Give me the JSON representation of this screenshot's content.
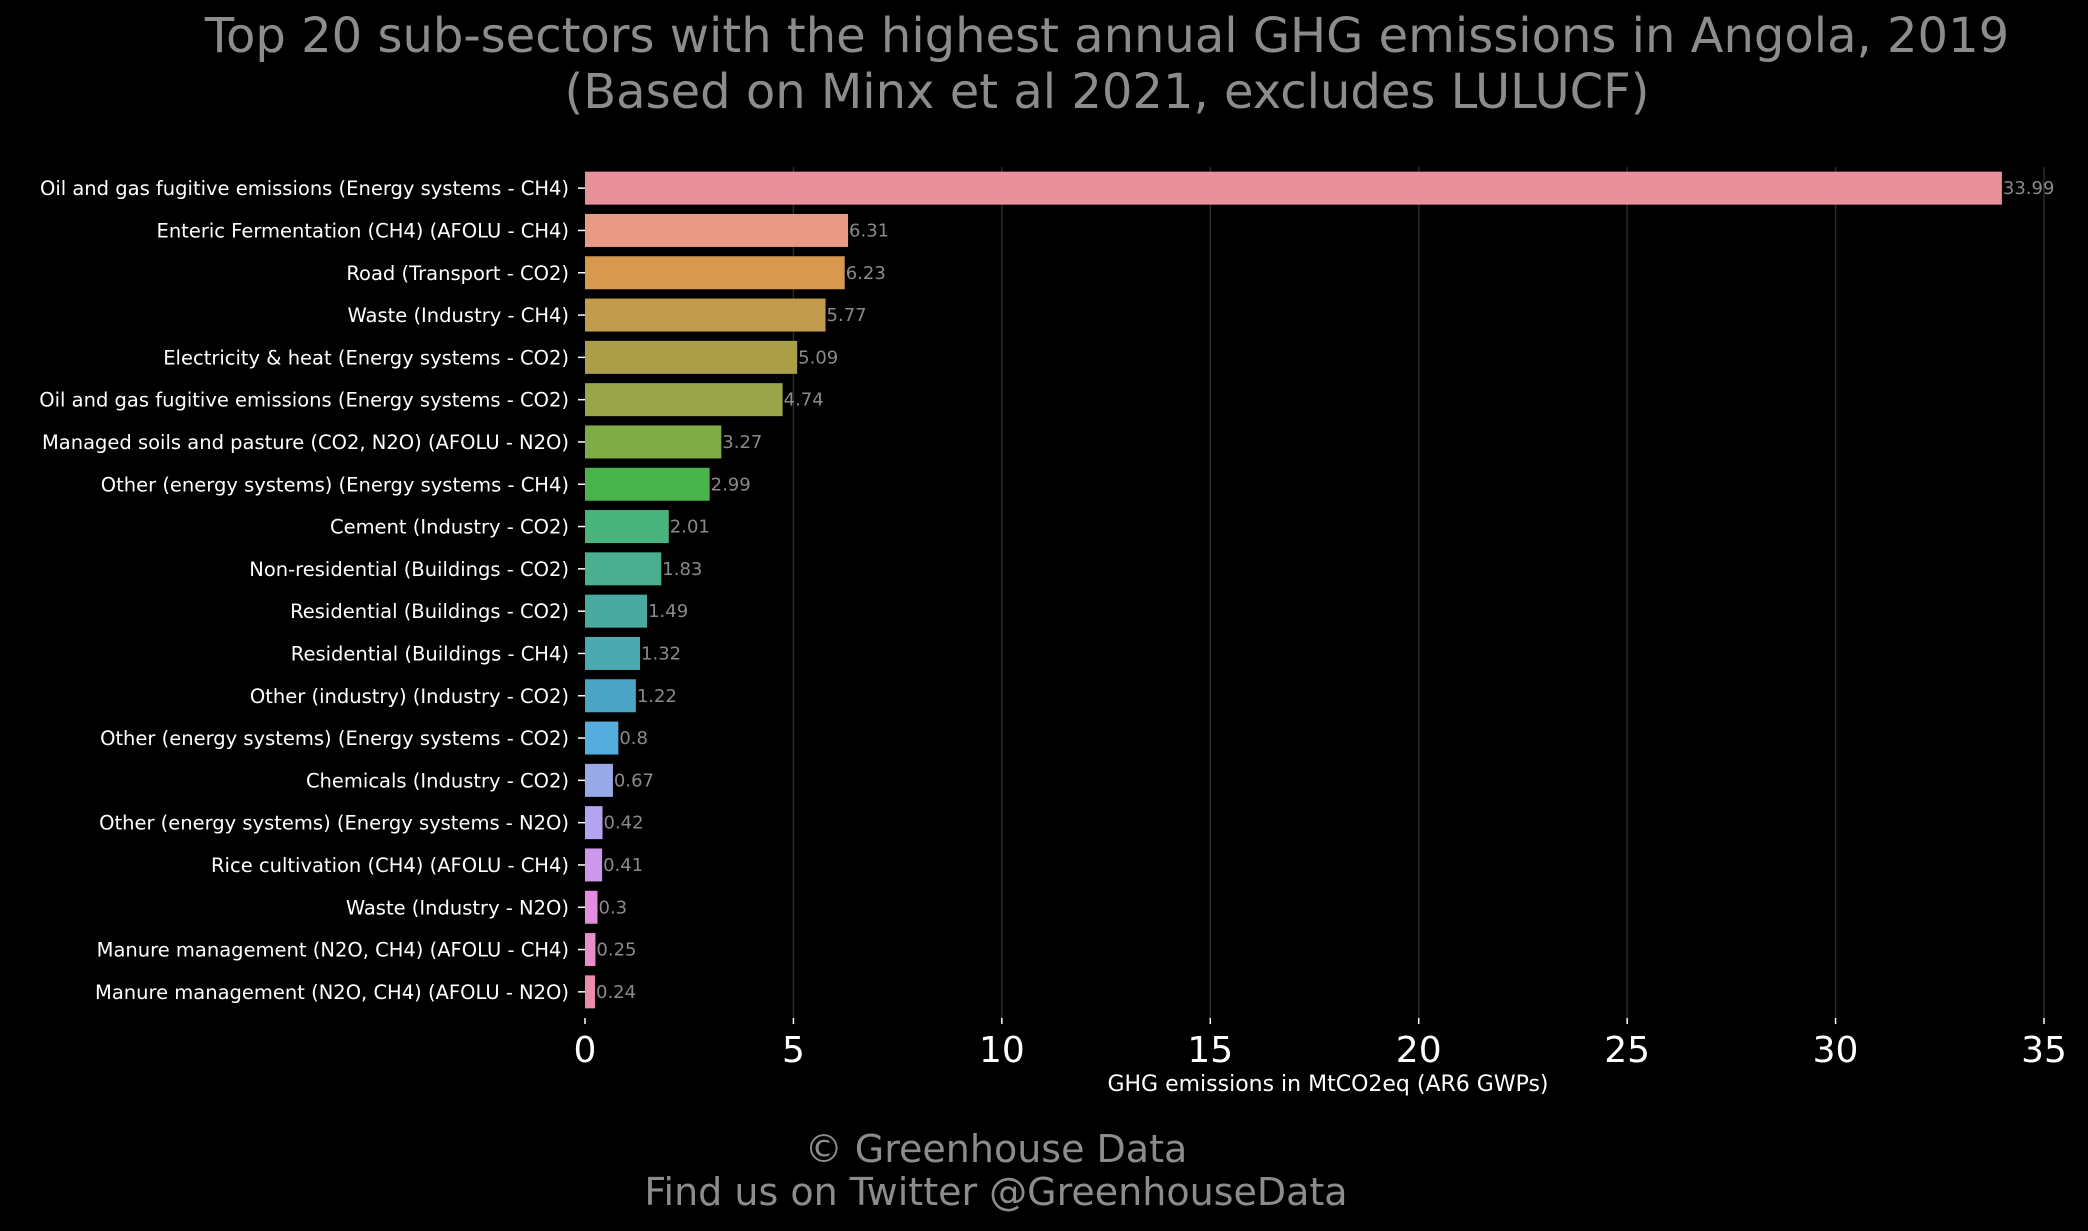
{
  "chart_data": {
    "type": "bar",
    "orientation": "horizontal",
    "title": "Top 20 sub-sectors with the highest annual GHG emissions in Angola, 2019",
    "subtitle": "(Based on Minx et al 2021, excludes LULUCF)",
    "xlabel": "GHG emissions in MtCO2eq (AR6 GWPs)",
    "ylabel": "",
    "xlim": [
      0,
      35
    ],
    "xticks": [
      0,
      5,
      10,
      15,
      20,
      25,
      30,
      35
    ],
    "grid": "vertical",
    "categories": [
      "Oil and gas fugitive emissions (Energy systems - CH4)",
      "Enteric Fermentation (CH4) (AFOLU - CH4)",
      "Road (Transport - CO2)",
      "Waste (Industry - CH4)",
      "Electricity & heat (Energy systems - CO2)",
      "Oil and gas fugitive emissions (Energy systems - CO2)",
      "Managed soils and pasture (CO2, N2O) (AFOLU - N2O)",
      "Other (energy systems) (Energy systems - CH4)",
      "Cement (Industry - CO2)",
      "Non-residential (Buildings - CO2)",
      "Residential (Buildings - CO2)",
      "Residential (Buildings - CH4)",
      "Other (industry) (Industry - CO2)",
      "Other (energy systems) (Energy systems - CO2)",
      "Chemicals (Industry - CO2)",
      "Other (energy systems) (Energy systems - N2O)",
      "Rice cultivation (CH4) (AFOLU - CH4)",
      "Waste (Industry - N2O)",
      "Manure management (N2O, CH4) (AFOLU - CH4)",
      "Manure management (N2O, CH4) (AFOLU - N2O)"
    ],
    "values": [
      33.99,
      6.31,
      6.23,
      5.77,
      5.09,
      4.74,
      3.27,
      2.99,
      2.01,
      1.83,
      1.49,
      1.32,
      1.22,
      0.8,
      0.67,
      0.42,
      0.41,
      0.3,
      0.25,
      0.24
    ],
    "value_labels": [
      "33.99",
      "6.31",
      "6.23",
      "5.77",
      "5.09",
      "4.74",
      "3.27",
      "2.99",
      "2.01",
      "1.83",
      "1.49",
      "1.32",
      "1.22",
      "0.8",
      "0.67",
      "0.42",
      "0.41",
      "0.3",
      "0.25",
      "0.24"
    ],
    "colors": [
      "#e8909c",
      "#e89a84",
      "#d8984e",
      "#c29c4c",
      "#aa9e48",
      "#9aa448",
      "#80ac48",
      "#4ab44c",
      "#4ab47e",
      "#4aae90",
      "#4aaaa0",
      "#4aaab0",
      "#4aa6c4",
      "#56acdc",
      "#9aaae8",
      "#b4a4f0",
      "#cc98ec",
      "#e48ce0",
      "#ec8cc8",
      "#ec8cac"
    ]
  },
  "footer": {
    "line1": "© Greenhouse Data",
    "line2": "Find us on Twitter @GreenhouseData"
  },
  "theme": {
    "background": "#000000",
    "title_color": "#8c8c8c",
    "text_color": "#ffffff",
    "value_label_color": "#8a8a8a",
    "grid_color": "#2a2a2a"
  }
}
